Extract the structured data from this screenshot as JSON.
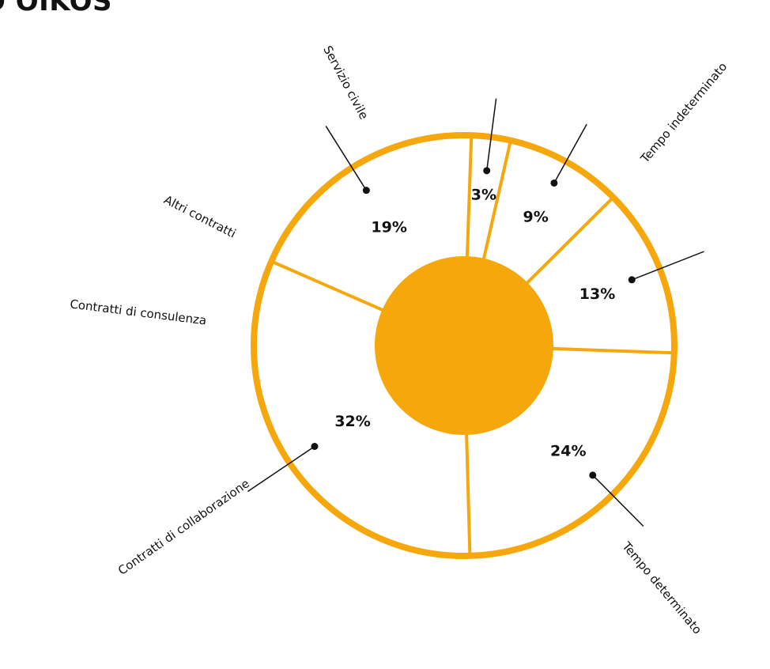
{
  "title": "O OIKOS",
  "colors": {
    "accent": "#F5A70C",
    "text": "#111111",
    "background": "#FFFFFF"
  },
  "chart_data": {
    "type": "pie",
    "title": "O OIKOS",
    "slices": [
      {
        "label": "Tempo indeterminato",
        "value": 24,
        "value_label": "24%"
      },
      {
        "label": "Tempo determinato",
        "value": 32,
        "value_label": "32%"
      },
      {
        "label": "Contratti di collaborazione",
        "value": 19,
        "value_label": "19%"
      },
      {
        "label": "Contratti di consulenza",
        "value": 3,
        "value_label": "3%"
      },
      {
        "label": "Altri contratti",
        "value": 9,
        "value_label": "9%"
      },
      {
        "label": "Servizio civile",
        "value": 13,
        "value_label": "13%"
      }
    ]
  }
}
